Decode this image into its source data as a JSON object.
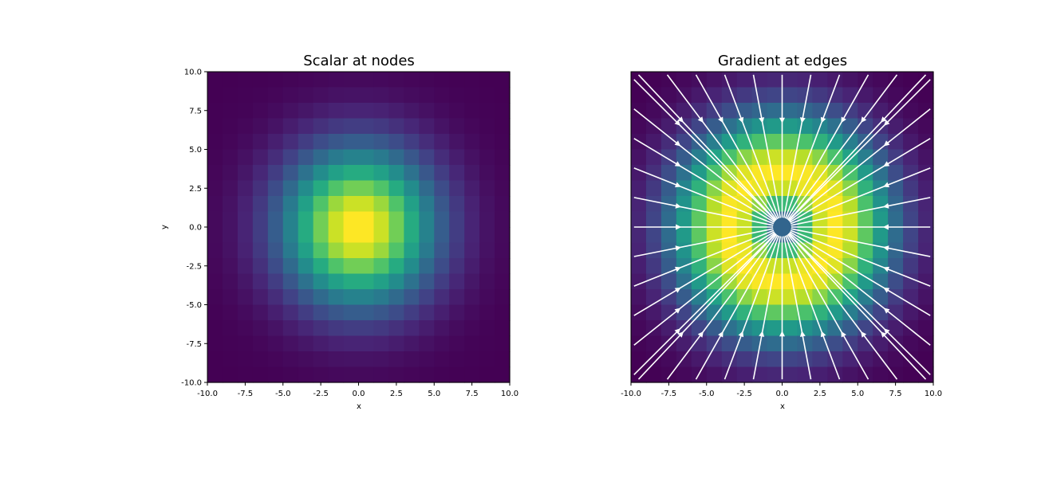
{
  "chart_data": [
    {
      "type": "heatmap",
      "title": "Scalar at nodes",
      "xlabel": "x",
      "ylabel": "y",
      "xlim": [
        -10,
        10
      ],
      "ylim": [
        -10,
        10
      ],
      "xticks": [
        "-10.0",
        "-7.5",
        "-5.0",
        "-2.5",
        "0.0",
        "2.5",
        "5.0",
        "7.5",
        "10.0"
      ],
      "yticks": [
        "10.0",
        "7.5",
        "5.0",
        "2.5",
        "0.0",
        "-2.5",
        "-5.0",
        "-7.5",
        "-10.0"
      ],
      "grid_cells": 20,
      "field": "gaussian peak centered at origin",
      "colormap": "viridis"
    },
    {
      "type": "heatmap",
      "title": "Gradient at edges",
      "xlabel": "x",
      "ylabel": "",
      "xlim": [
        -10,
        10
      ],
      "ylim": [
        -10,
        10
      ],
      "xticks": [
        "-10.0",
        "-7.5",
        "-5.0",
        "-2.5",
        "0.0",
        "2.5",
        "5.0",
        "7.5",
        "10.0"
      ],
      "grid_cells": 20,
      "field": "gradient magnitude ring around origin",
      "colormap": "viridis",
      "overlay": "streamlines converging to origin",
      "streamline_color": "#ffffff"
    }
  ]
}
